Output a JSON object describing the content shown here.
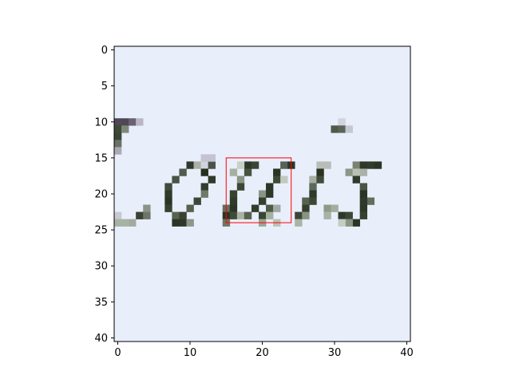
{
  "chart_data": {
    "type": "heatmap",
    "title": "",
    "xlabel": "",
    "ylabel": "",
    "xlim": [
      -0.5,
      40.5
    ],
    "ylim": [
      40.5,
      -0.5
    ],
    "x_ticks": [
      0,
      10,
      20,
      30,
      40
    ],
    "y_ticks": [
      0,
      5,
      10,
      15,
      20,
      25,
      30,
      35,
      40
    ],
    "x_tick_labels": [
      "0",
      "10",
      "20",
      "30",
      "40"
    ],
    "y_tick_labels": [
      "0",
      "5",
      "10",
      "15",
      "20",
      "25",
      "30",
      "35",
      "40"
    ],
    "grid": false,
    "background_color": "#e9eefb",
    "annotations": [
      {
        "type": "rectangle",
        "x0": 15,
        "y0": 15,
        "x1": 24,
        "y1": 24,
        "color": "#ff0000"
      }
    ],
    "dark_pixels": [
      {
        "x": 0,
        "y": 10,
        "color": "#4e4756"
      },
      {
        "x": 1,
        "y": 10,
        "color": "#4e4756"
      },
      {
        "x": 2,
        "y": 10,
        "color": "#6a6273"
      },
      {
        "x": 3,
        "y": 10,
        "color": "#b9b6c4"
      },
      {
        "x": 0,
        "y": 11,
        "color": "#3e4a37"
      },
      {
        "x": 1,
        "y": 11,
        "color": "#7f8778"
      },
      {
        "x": 0,
        "y": 12,
        "color": "#3b4535"
      },
      {
        "x": 0,
        "y": 13,
        "color": "#6b7265"
      },
      {
        "x": 0,
        "y": 14,
        "color": "#a9aab6"
      },
      {
        "x": 10,
        "y": 16,
        "color": "#30382e"
      },
      {
        "x": 11,
        "y": 16,
        "color": "#a9b0a6"
      },
      {
        "x": 12,
        "y": 16,
        "color": "#d2d4dc"
      },
      {
        "x": 13,
        "y": 16,
        "color": "#4b5246"
      },
      {
        "x": 9,
        "y": 17,
        "color": "#525b4c"
      },
      {
        "x": 12,
        "y": 17,
        "color": "#25301f"
      },
      {
        "x": 8,
        "y": 18,
        "color": "#4a5445"
      },
      {
        "x": 13,
        "y": 18,
        "color": "#2f3a2a"
      },
      {
        "x": 7,
        "y": 19,
        "color": "#414b3b"
      },
      {
        "x": 12,
        "y": 19,
        "color": "#333d2f"
      },
      {
        "x": 7,
        "y": 20,
        "color": "#2f3a2a"
      },
      {
        "x": 12,
        "y": 20,
        "color": "#6f7a6a"
      },
      {
        "x": 7,
        "y": 21,
        "color": "#2b3526"
      },
      {
        "x": 11,
        "y": 21,
        "color": "#3c4538"
      },
      {
        "x": 7,
        "y": 22,
        "color": "#36412f"
      },
      {
        "x": 10,
        "y": 22,
        "color": "#58604f"
      },
      {
        "x": 4,
        "y": 22,
        "color": "#8d9288"
      },
      {
        "x": 3,
        "y": 23,
        "color": "#3a4236"
      },
      {
        "x": 4,
        "y": 23,
        "color": "#6e7568"
      },
      {
        "x": 8,
        "y": 23,
        "color": "#59624f"
      },
      {
        "x": 9,
        "y": 23,
        "color": "#3a4332"
      },
      {
        "x": 2,
        "y": 24,
        "color": "#a4aa9f"
      },
      {
        "x": 0,
        "y": 23,
        "color": "#c7cad2"
      },
      {
        "x": 0,
        "y": 24,
        "color": "#a7b3a2"
      },
      {
        "x": 1,
        "y": 24,
        "color": "#a7b3a2"
      },
      {
        "x": 8,
        "y": 24,
        "color": "#2b3526"
      },
      {
        "x": 9,
        "y": 24,
        "color": "#2e3829"
      },
      {
        "x": 10,
        "y": 24,
        "color": "#8e9589"
      },
      {
        "x": 12,
        "y": 15,
        "color": "#c3c3d3"
      },
      {
        "x": 13,
        "y": 15,
        "color": "#c3c3d3"
      },
      {
        "x": 18,
        "y": 16,
        "color": "#2d3828"
      },
      {
        "x": 19,
        "y": 16,
        "color": "#3a4634"
      },
      {
        "x": 17,
        "y": 16,
        "color": "#c7d0c4"
      },
      {
        "x": 16,
        "y": 17,
        "color": "#a6b0a1"
      },
      {
        "x": 18,
        "y": 17,
        "color": "#48553f"
      },
      {
        "x": 23,
        "y": 16,
        "color": "#59605a"
      },
      {
        "x": 22,
        "y": 17,
        "color": "#2a3326"
      },
      {
        "x": 17,
        "y": 18,
        "color": "#8a9585"
      },
      {
        "x": 22,
        "y": 18,
        "color": "#3d4a35"
      },
      {
        "x": 17,
        "y": 19,
        "color": "#3c4835"
      },
      {
        "x": 21,
        "y": 19,
        "color": "#2c3727"
      },
      {
        "x": 16,
        "y": 20,
        "color": "#36432f"
      },
      {
        "x": 20,
        "y": 20,
        "color": "#8a9486"
      },
      {
        "x": 21,
        "y": 20,
        "color": "#2d3828"
      },
      {
        "x": 16,
        "y": 21,
        "color": "#2f3a2a"
      },
      {
        "x": 20,
        "y": 21,
        "color": "#33402d"
      },
      {
        "x": 15,
        "y": 22,
        "color": "#61705a"
      },
      {
        "x": 16,
        "y": 22,
        "color": "#2b3526"
      },
      {
        "x": 19,
        "y": 22,
        "color": "#313d2d"
      },
      {
        "x": 21,
        "y": 22,
        "color": "#4e5b46"
      },
      {
        "x": 15,
        "y": 23,
        "color": "#293325"
      },
      {
        "x": 16,
        "y": 23,
        "color": "#3f4b38"
      },
      {
        "x": 17,
        "y": 23,
        "color": "#a8b2a3"
      },
      {
        "x": 18,
        "y": 23,
        "color": "#566150"
      },
      {
        "x": 20,
        "y": 23,
        "color": "#3a4634"
      },
      {
        "x": 21,
        "y": 23,
        "color": "#a5b0a0"
      },
      {
        "x": 15,
        "y": 24,
        "color": "#6b7864"
      },
      {
        "x": 20,
        "y": 24,
        "color": "#9aa694"
      },
      {
        "x": 22,
        "y": 24,
        "color": "#b9c2b5"
      },
      {
        "x": 22,
        "y": 22,
        "color": "#a0a9a3"
      },
      {
        "x": 24,
        "y": 16,
        "color": "#2b3526"
      },
      {
        "x": 23,
        "y": 18,
        "color": "#c2c9bf"
      },
      {
        "x": 30,
        "y": 11,
        "color": "#505a4c"
      },
      {
        "x": 31,
        "y": 10,
        "color": "#d3d3de"
      },
      {
        "x": 31,
        "y": 11,
        "color": "#5b6457"
      },
      {
        "x": 32,
        "y": 11,
        "color": "#c2c7d2"
      },
      {
        "x": 28,
        "y": 16,
        "color": "#b8bdb7"
      },
      {
        "x": 29,
        "y": 16,
        "color": "#b8bdb7"
      },
      {
        "x": 28,
        "y": 17,
        "color": "#29331f"
      },
      {
        "x": 27,
        "y": 18,
        "color": "#a8aea4"
      },
      {
        "x": 28,
        "y": 18,
        "color": "#414b3a"
      },
      {
        "x": 27,
        "y": 19,
        "color": "#5d6858"
      },
      {
        "x": 27,
        "y": 20,
        "color": "#2f3a2a"
      },
      {
        "x": 26,
        "y": 21,
        "color": "#59614f"
      },
      {
        "x": 27,
        "y": 21,
        "color": "#3c4736"
      },
      {
        "x": 26,
        "y": 22,
        "color": "#33402d"
      },
      {
        "x": 25,
        "y": 23,
        "color": "#3a4634"
      },
      {
        "x": 26,
        "y": 23,
        "color": "#8a9486"
      },
      {
        "x": 25,
        "y": 24,
        "color": "#aab4a4"
      },
      {
        "x": 29,
        "y": 22,
        "color": "#8d9a85"
      },
      {
        "x": 29,
        "y": 23,
        "color": "#aab2a6"
      },
      {
        "x": 33,
        "y": 16,
        "color": "#7a8270"
      },
      {
        "x": 34,
        "y": 16,
        "color": "#2d3828"
      },
      {
        "x": 35,
        "y": 16,
        "color": "#313c2c"
      },
      {
        "x": 36,
        "y": 16,
        "color": "#2b3526"
      },
      {
        "x": 32,
        "y": 17,
        "color": "#8c9588"
      },
      {
        "x": 33,
        "y": 17,
        "color": "#b9c1b5"
      },
      {
        "x": 34,
        "y": 17,
        "color": "#aab1a6"
      },
      {
        "x": 33,
        "y": 18,
        "color": "#2f3a2a"
      },
      {
        "x": 34,
        "y": 19,
        "color": "#4a5644"
      },
      {
        "x": 34,
        "y": 20,
        "color": "#2b3526"
      },
      {
        "x": 35,
        "y": 21,
        "color": "#61705a"
      },
      {
        "x": 34,
        "y": 21,
        "color": "#2f3a2a"
      },
      {
        "x": 34,
        "y": 22,
        "color": "#2d3828"
      },
      {
        "x": 31,
        "y": 23,
        "color": "#2e3829"
      },
      {
        "x": 32,
        "y": 23,
        "color": "#3c4736"
      },
      {
        "x": 34,
        "y": 23,
        "color": "#36412f"
      },
      {
        "x": 30,
        "y": 22,
        "color": "#a5ada0"
      },
      {
        "x": 33,
        "y": 24,
        "color": "#2b3526"
      },
      {
        "x": 32,
        "y": 24,
        "color": "#8a9486"
      },
      {
        "x": 31,
        "y": 24,
        "color": "#c6ccc2"
      }
    ]
  }
}
